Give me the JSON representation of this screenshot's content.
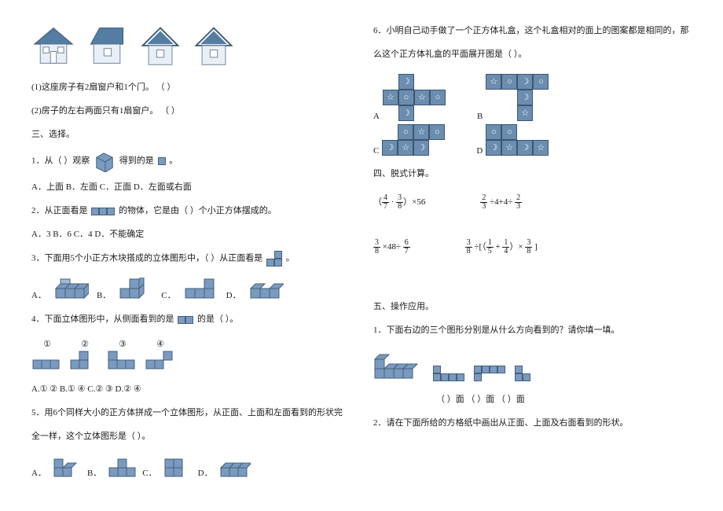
{
  "colors": {
    "cube_fill": "#7a9abf",
    "cube_fill_light": "#a1bbd6",
    "cube_stroke": "#45607a",
    "net_fill": "#6b8db0",
    "net_stroke": "#3d5670",
    "house_roof": "#547da3",
    "house_wall": "#e8eff6",
    "text": "#1a1a1a",
    "bg": "#ffffff"
  },
  "font_size_body": 11,
  "left": {
    "q1_1": "(1)这座房子有2扇窗户和1个门。  （   ）",
    "q1_2": "(2)房子的左右两面只有1扇窗户。  （   ）",
    "sec3": "三、选择。",
    "p1_a": "1．从（  ）观察",
    "p1_b": "得到的是",
    "p1_c": "。",
    "p1_opts": "A．上面    B．左面    C．正面    D．左面或右面",
    "p2_a": "2．从正面看是",
    "p2_b": "的物体，它是由（  ）个小正方体摆成的。",
    "p2_opts": "A．3    B．6    C．4    D．不能确定",
    "p3_a": "3．下面用5个小正方木块搭成的立体图形中，（   ）从正面看是",
    "p3_b": "。",
    "labels_ABCD": [
      "A．",
      "B．",
      "C．",
      "D．"
    ],
    "p4_a": "4．下面立体图形中，从侧面看到的是",
    "p4_b": "的是（   ）。",
    "p4_nums": [
      "①",
      "②",
      "③",
      "④"
    ],
    "p4_opts": "A.① ②        B.① ④        C.② ③        D.② ④",
    "p5_a": "5．用6个同样大小的正方体拼成一个立体图形，从正面、上面和左面看到的形状完",
    "p5_b": "全一样，这个立体图形是（   ）。"
  },
  "right": {
    "p6_a": "6．小明自己动手做了一个正方体礼盒，这个礼盒相对的面上的图案都是相同的，那",
    "p6_b": "么这个正方体礼盒的平面展开图是（   ）。",
    "net_labels": [
      "A",
      "B",
      "C",
      "D"
    ],
    "net_patterns": {
      "A": [
        [
          null,
          "☽",
          null,
          null
        ],
        [
          "☆",
          "○",
          "☆",
          "○"
        ],
        [
          null,
          "☽",
          null,
          null
        ]
      ],
      "B": [
        [
          "☆",
          "○",
          "☽",
          "○"
        ],
        [
          null,
          null,
          "☽",
          null
        ],
        [
          null,
          null,
          "☆",
          null
        ]
      ],
      "C": [
        [
          null,
          "○",
          "☆",
          "○"
        ],
        [
          "☽",
          "☆",
          "☽",
          null
        ]
      ],
      "D": [
        [
          "○",
          "○",
          null,
          null
        ],
        [
          "☽",
          "☆",
          "☽",
          "☆"
        ]
      ]
    },
    "sec4": "四、脱式计算。",
    "calc": [
      "(4/7 · 3/8) ×56",
      "2/3 ÷4+4÷ 2/3",
      "3/8 ×48÷ 6/7",
      "3/8 ÷[（1/5 + 1/4）× 3/8 ]"
    ],
    "sec5": "五、操作应用。",
    "p5_1": "1．下面右边的三个图形分别是从什么方向看到的？请你填一填。",
    "view_labels": "（    ）面    （    ）面    （    ）面",
    "p5_2": "2．请在下面所给的方格纸中画出从正面、上面及右面看到的形状。"
  }
}
